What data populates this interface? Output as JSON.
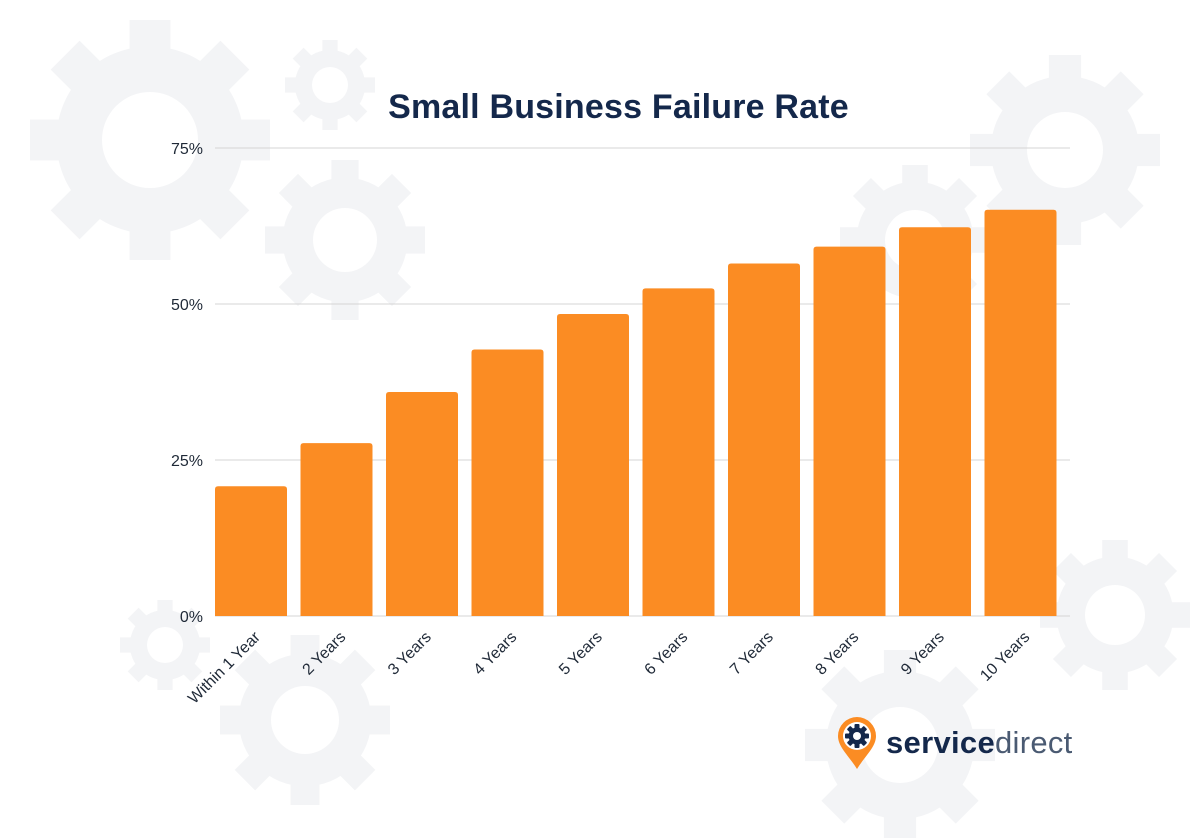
{
  "colors": {
    "bar": "#fb8c23",
    "title": "#14284b",
    "grid": "#d4d4d4",
    "gear_bg": "#f3f4f6"
  },
  "brand": {
    "name_part1": "service",
    "name_part2": "direct",
    "icon": "gear-pin-icon"
  },
  "chart_data": {
    "type": "bar",
    "title": "Small Business Failure Rate",
    "xlabel": "",
    "ylabel": "",
    "ylim": [
      0,
      75
    ],
    "yticks": [
      0,
      25,
      50,
      75
    ],
    "ytick_labels": [
      "0%",
      "25%",
      "50%",
      "75%"
    ],
    "grid": true,
    "categories": [
      "Within 1 Year",
      "2 Years",
      "3 Years",
      "4 Years",
      "5 Years",
      "6 Years",
      "7 Years",
      "8 Years",
      "9 Years",
      "10 Years"
    ],
    "values": [
      20.8,
      27.7,
      35.9,
      42.7,
      48.4,
      52.5,
      56.5,
      59.2,
      62.3,
      65.1
    ]
  }
}
